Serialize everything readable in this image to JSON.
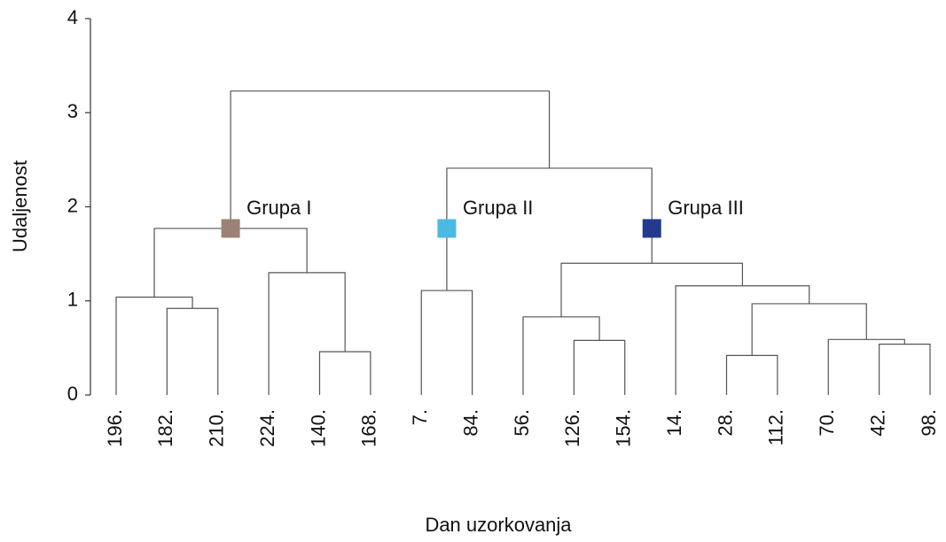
{
  "chart_data": {
    "type": "dendrogram",
    "x_label": "Dan uzorkovanja",
    "y_label": "Udaljenost",
    "ylim": [
      0,
      4
    ],
    "yticks": [
      0,
      1,
      2,
      3,
      4
    ],
    "categories": [
      "196.",
      "182.",
      "210.",
      "224.",
      "140.",
      "168.",
      "7.",
      "84.",
      "56.",
      "126.",
      "154.",
      "14.",
      "28.",
      "112.",
      "70.",
      "42.",
      "98."
    ],
    "merges": [
      {
        "left": 1,
        "right": 2,
        "height": 0.92
      },
      {
        "left": 0,
        "right": 17,
        "height": 1.04
      },
      {
        "left": 4,
        "right": 5,
        "height": 0.46
      },
      {
        "left": 3,
        "right": 19,
        "height": 1.3
      },
      {
        "left": 18,
        "right": 20,
        "height": 1.77
      },
      {
        "left": 6,
        "right": 7,
        "height": 1.11
      },
      {
        "left": 9,
        "right": 10,
        "height": 0.58
      },
      {
        "left": 8,
        "right": 23,
        "height": 0.83
      },
      {
        "left": 12,
        "right": 13,
        "height": 0.42
      },
      {
        "left": 15,
        "right": 16,
        "height": 0.54
      },
      {
        "left": 14,
        "right": 26,
        "height": 0.59
      },
      {
        "left": 25,
        "right": 27,
        "height": 0.97
      },
      {
        "left": 11,
        "right": 28,
        "height": 1.16
      },
      {
        "left": 24,
        "right": 29,
        "height": 1.4
      },
      {
        "left": 22,
        "right": 30,
        "height": 2.41
      },
      {
        "left": 21,
        "right": 31,
        "height": 3.23
      }
    ],
    "line_color": "#555555",
    "groups": [
      {
        "label": "Grupa I",
        "color": "#9b8275",
        "node": 21,
        "height": 1.77
      },
      {
        "label": "Grupa II",
        "color": "#4cb9e2",
        "node": 22,
        "height": 1.77
      },
      {
        "label": "Grupa III",
        "color": "#243a8e",
        "node": 30,
        "height": 1.77
      }
    ]
  }
}
